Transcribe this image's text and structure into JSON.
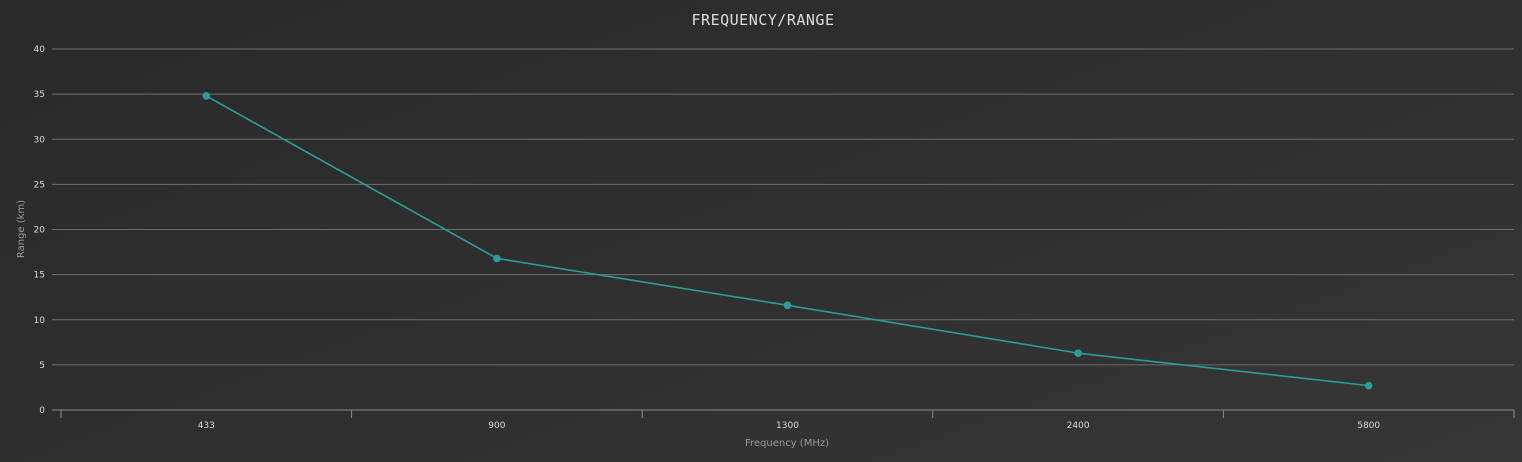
{
  "chart_data": {
    "type": "line",
    "title": "FREQUENCY/RANGE",
    "xlabel": "Frequency (MHz)",
    "ylabel": "Range (km)",
    "categories": [
      "433",
      "900",
      "1300",
      "2400",
      "5800"
    ],
    "series": [
      {
        "values": [
          34.8,
          16.8,
          11.6,
          6.3,
          2.7
        ]
      }
    ],
    "ylim": [
      0,
      40
    ],
    "yticks": [
      0,
      5,
      10,
      15,
      20,
      25,
      30,
      35,
      40
    ],
    "grid": true,
    "legend": "none",
    "colors": {
      "line": "#2a9d99",
      "grid": "#6e6e6e",
      "axis": "#8a8a8a"
    }
  }
}
